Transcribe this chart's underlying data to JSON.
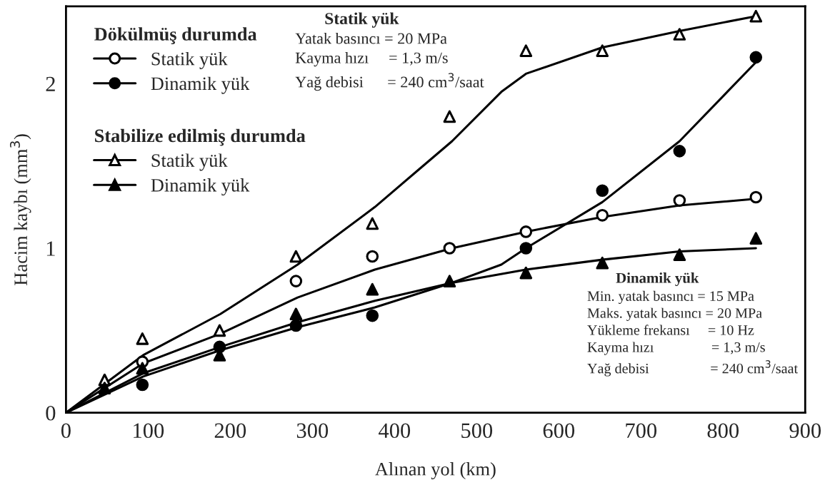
{
  "chart_data": {
    "type": "scatter",
    "xlabel": "Alınan yol (km)",
    "ylabel": "Hacim kaybı (mm$^{3}$)",
    "xlim": [
      0,
      900
    ],
    "xticks": [
      0,
      100,
      200,
      300,
      400,
      500,
      600,
      700,
      800,
      900
    ],
    "ylim": [
      0,
      2.47
    ],
    "yticks": [
      0,
      1,
      2
    ],
    "grid": false,
    "legend": "top left",
    "x": [
      47,
      93,
      187,
      280,
      373,
      467,
      560,
      653,
      747,
      840
    ],
    "series": [
      {
        "name": "Statik yük",
        "marker": "circle",
        "color": "#ffffff",
        "values": [
          null,
          0.31,
          null,
          0.8,
          0.95,
          1.0,
          1.1,
          1.2,
          1.29,
          1.31
        ]
      },
      {
        "name": "Dinamik yük",
        "marker": "circle",
        "color": "#000000",
        "values": [
          null,
          0.17,
          0.4,
          0.53,
          0.59,
          null,
          1.0,
          1.35,
          1.59,
          2.16
        ]
      },
      {
        "name": "Statik yük",
        "marker": "triangle",
        "color": "#ffffff",
        "values": [
          0.2,
          0.45,
          0.5,
          0.95,
          1.15,
          1.8,
          2.2,
          2.2,
          2.3,
          2.41
        ]
      },
      {
        "name": "Dinamik yük",
        "marker": "triangle",
        "color": "#000000",
        "values": [
          0.15,
          0.27,
          0.35,
          0.6,
          0.75,
          0.8,
          0.85,
          0.91,
          0.96,
          1.06
        ]
      },
      {
        "type": "line",
        "color": "#000000",
        "x": [
          0,
          94,
          188,
          282,
          376,
          470,
          560,
          653,
          747,
          840
        ],
        "values": [
          0,
          0.3,
          0.48,
          0.7,
          0.87,
          1.0,
          1.1,
          1.19,
          1.26,
          1.3
        ]
      },
      {
        "type": "line",
        "color": "#000000",
        "x": [
          0,
          94,
          188,
          282,
          376,
          470,
          530,
          560,
          653,
          747,
          840
        ],
        "values": [
          0,
          0.22,
          0.38,
          0.52,
          0.64,
          0.79,
          0.9,
          1.0,
          1.28,
          1.65,
          2.13
        ]
      },
      {
        "type": "line",
        "color": "#000000",
        "x": [
          0,
          94,
          188,
          282,
          376,
          430,
          470,
          530,
          560,
          653,
          747,
          840
        ],
        "values": [
          0,
          0.35,
          0.6,
          0.9,
          1.25,
          1.48,
          1.65,
          1.95,
          2.06,
          2.22,
          2.32,
          2.41
        ]
      },
      {
        "type": "line",
        "color": "#000000",
        "x": [
          0,
          94,
          188,
          282,
          376,
          470,
          560,
          653,
          747,
          840
        ],
        "values": [
          0,
          0.24,
          0.4,
          0.55,
          0.68,
          0.79,
          0.87,
          0.93,
          0.98,
          1.0
        ]
      }
    ],
    "annotations": [
      "Dökülmüş durumda",
      "Stabilize edilmiş durumda",
      "Statik yük",
      "Yatak basıncı = 20 MPa\nKayma hızı     = 1,3 m/s\nYağ debisi      = 240 cm$^{3}$/saat",
      "Dinamik yük",
      "Min. yatak basıncı = 15 MPa\nMaks. yatak basıncı = 20 MPa\nYükleme frekansı     = 10 Hz\nKayma hızı                = 1,3 m/s\nYağ debisi                 = 240 cm$^{3}$/saat"
    ]
  }
}
